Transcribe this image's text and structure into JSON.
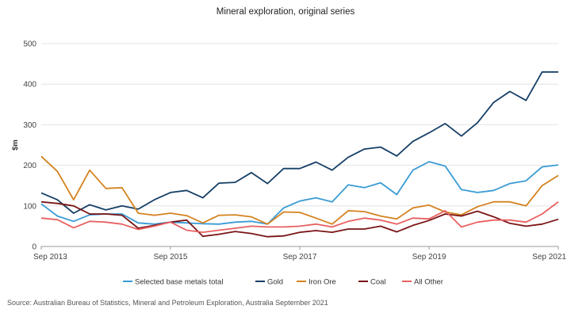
{
  "title": "Mineral exploration, original series",
  "source": "Source: Australian Bureau of Statistics, Mineral and Petroleum Exploration, Australia September 2021",
  "chart_data": {
    "type": "line",
    "title": "Mineral exploration, original series",
    "xlabel": "",
    "ylabel": "$m",
    "ylim": [
      0,
      500
    ],
    "yticks": [
      0,
      100,
      200,
      300,
      400,
      500
    ],
    "xtick_labels": [
      "Sep 2013",
      "Sep 2015",
      "Sep 2017",
      "Sep 2019",
      "Sep 2021"
    ],
    "grid": true,
    "legend": "bottom",
    "x": [
      "Sep 2013",
      "Dec 2013",
      "Mar 2014",
      "Jun 2014",
      "Sep 2014",
      "Dec 2014",
      "Mar 2015",
      "Jun 2015",
      "Sep 2015",
      "Dec 2015",
      "Mar 2016",
      "Jun 2016",
      "Sep 2016",
      "Dec 2016",
      "Mar 2017",
      "Jun 2017",
      "Sep 2017",
      "Dec 2017",
      "Mar 2018",
      "Jun 2018",
      "Sep 2018",
      "Dec 2018",
      "Mar 2019",
      "Jun 2019",
      "Sep 2019",
      "Dec 2019",
      "Mar 2020",
      "Jun 2020",
      "Sep 2020",
      "Dec 2020",
      "Mar 2021",
      "Jun 2021",
      "Sep 2021"
    ],
    "series": [
      {
        "name": "Selected base metals total",
        "color": "#3a9bd5",
        "values": [
          105,
          75,
          62,
          78,
          80,
          80,
          58,
          55,
          60,
          58,
          56,
          55,
          60,
          62,
          55,
          95,
          112,
          120,
          110,
          152,
          145,
          157,
          128,
          188,
          209,
          198,
          140,
          133,
          138,
          155,
          162,
          196,
          201
        ]
      },
      {
        "name": "Gold",
        "color": "#163f66",
        "values": [
          132,
          115,
          82,
          103,
          90,
          100,
          92,
          115,
          133,
          138,
          120,
          156,
          158,
          182,
          155,
          192,
          192,
          208,
          188,
          220,
          240,
          245,
          223,
          259,
          280,
          303,
          272,
          305,
          355,
          382,
          360,
          430,
          430
        ]
      },
      {
        "name": "Iron Ore",
        "color": "#d4821f",
        "values": [
          222,
          185,
          115,
          188,
          143,
          145,
          82,
          77,
          82,
          76,
          58,
          77,
          78,
          73,
          55,
          85,
          84,
          70,
          55,
          88,
          86,
          75,
          68,
          95,
          102,
          85,
          78,
          98,
          110,
          110,
          100,
          150,
          175
        ]
      },
      {
        "name": "Coal",
        "color": "#7a1416",
        "values": [
          110,
          106,
          100,
          80,
          80,
          77,
          45,
          52,
          60,
          65,
          25,
          30,
          37,
          32,
          24,
          26,
          35,
          39,
          35,
          43,
          43,
          50,
          36,
          52,
          64,
          80,
          75,
          87,
          73,
          57,
          50,
          55,
          67
        ]
      },
      {
        "name": "All Other",
        "color": "#e86060",
        "values": [
          70,
          66,
          46,
          62,
          60,
          55,
          42,
          50,
          60,
          40,
          35,
          40,
          45,
          50,
          48,
          48,
          50,
          55,
          48,
          62,
          70,
          65,
          55,
          70,
          68,
          88,
          48,
          60,
          65,
          65,
          60,
          80,
          110
        ]
      }
    ]
  }
}
